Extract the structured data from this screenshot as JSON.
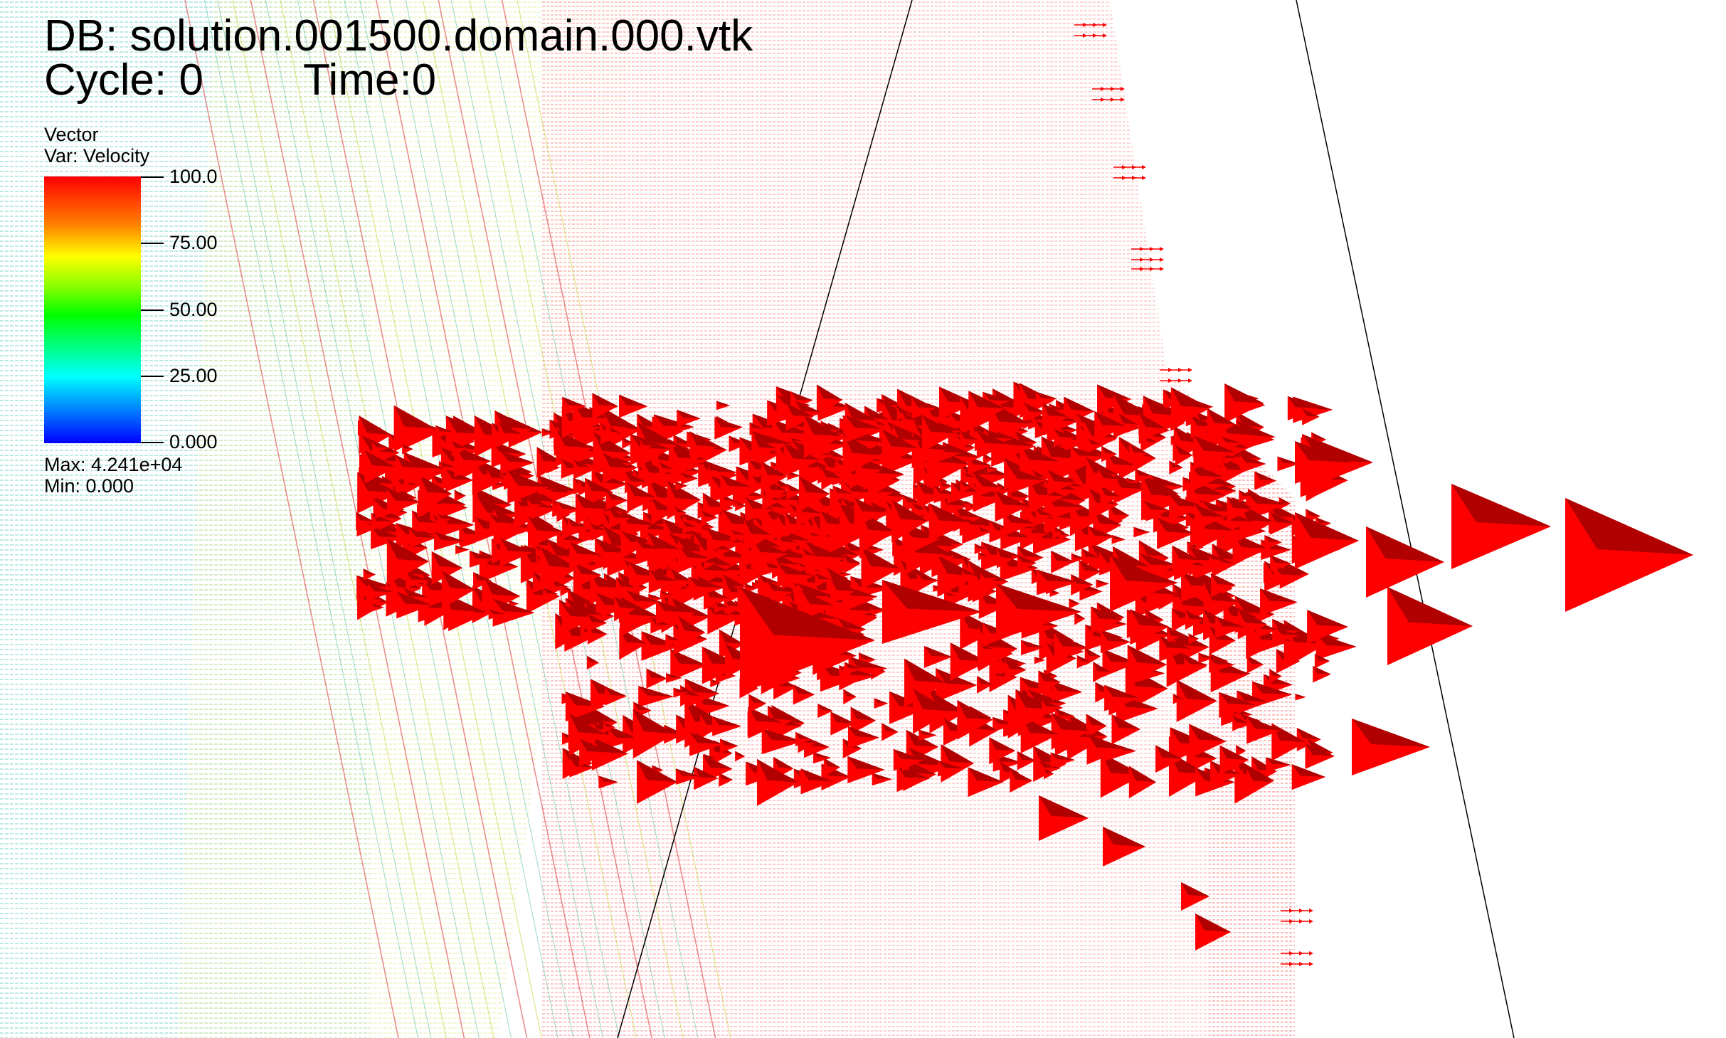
{
  "header": {
    "db_label": "DB: solution.001500.domain.000.vtk",
    "cycle_label": "Cycle: 0",
    "time_label": "Time:0"
  },
  "legend": {
    "plot_type": "Vector",
    "variable": "Var: Velocity",
    "ticks": [
      "100.0",
      "75.00",
      "50.00",
      "25.00",
      "0.000"
    ],
    "max_label": "Max:  4.241e+04",
    "min_label": "Min:  0.000",
    "colormap": [
      "#0000ff",
      "#00ffff",
      "#00ff00",
      "#ffff00",
      "#ff8000",
      "#ff0000"
    ]
  },
  "scene": {
    "glyph_color": "#ff0000",
    "glyph_dark": "#b00000",
    "background": "#ffffff",
    "line_color": "#000000"
  }
}
